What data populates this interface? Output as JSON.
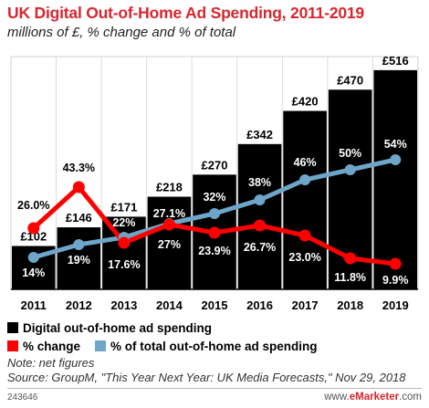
{
  "colors": {
    "accent": "#d8262e",
    "bar": "#000000",
    "change_line": "#ff0000",
    "share_line": "#6da6c8"
  },
  "chart_data": {
    "type": "bar",
    "title": "UK Digital Out-of-Home Ad Spending, 2011-2019",
    "subtitle": "millions of £, % change and % of total",
    "categories": [
      "2011",
      "2012",
      "2013",
      "2014",
      "2015",
      "2016",
      "2017",
      "2018",
      "2019"
    ],
    "series": [
      {
        "name": "Digital out-of-home ad spending",
        "kind": "bar",
        "values": [
          102,
          146,
          171,
          218,
          270,
          342,
          420,
          470,
          516
        ],
        "labels": [
          "£102",
          "£146",
          "£171",
          "£218",
          "£270",
          "£342",
          "£420",
          "£470",
          "£516"
        ]
      },
      {
        "name": "% change",
        "kind": "line",
        "values": [
          26.0,
          43.3,
          17.6,
          27.1,
          23.9,
          26.7,
          23.0,
          11.8,
          9.9
        ],
        "labels": [
          "26.0%",
          "43.3%",
          "17.6%",
          "27.1%",
          "23.9%",
          "26.7%",
          "23.0%",
          "11.8%",
          "9.9%"
        ]
      },
      {
        "name": "% of total out-of-home ad spending",
        "kind": "line",
        "values": [
          14,
          19,
          22,
          27,
          32,
          38,
          46,
          50,
          54
        ],
        "labels": [
          "14%",
          "19%",
          "22%",
          "27%",
          "32%",
          "38%",
          "46%",
          "50%",
          "54%"
        ]
      }
    ],
    "ylim": [
      0,
      520
    ],
    "grid": true,
    "legend_position": "bottom-left"
  },
  "notes": {
    "note": "Note: net figures",
    "source": "Source: GroupM, \"This Year Next Year: UK Media Forecasts,\" Nov 29, 2018"
  },
  "footer": {
    "id": "243646",
    "site": "www.",
    "brand": "eMarketer",
    "domain": ".com"
  }
}
